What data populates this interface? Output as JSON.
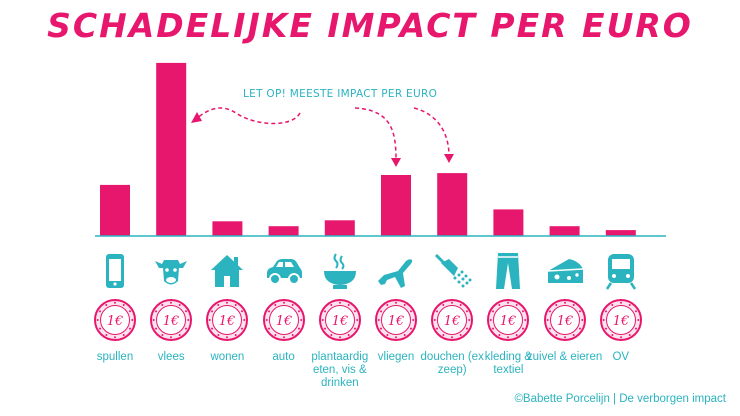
{
  "colors": {
    "bar": "#e8176e",
    "teal": "#2bb3bf",
    "coin": "#e8176e"
  },
  "chart_data": {
    "type": "bar",
    "title": "SCHADELIJKE IMPACT PER EURO",
    "categories": [
      {
        "label": "spullen",
        "icon": "smartphone-icon"
      },
      {
        "label": "vlees",
        "icon": "cow-icon"
      },
      {
        "label": "wonen",
        "icon": "house-icon"
      },
      {
        "label": "auto",
        "icon": "car-icon"
      },
      {
        "label": "plantaardig eten, vis & drinken",
        "icon": "steaming-bowl-icon"
      },
      {
        "label": "vliegen",
        "icon": "airplane-icon"
      },
      {
        "label": "douchen (ex zeep)",
        "icon": "shower-icon"
      },
      {
        "label": "kleding & textiel",
        "icon": "trousers-icon"
      },
      {
        "label": "zuivel & eieren",
        "icon": "cheese-icon"
      },
      {
        "label": "OV",
        "icon": "train-icon"
      }
    ],
    "values": [
      52,
      176,
      15,
      10,
      16,
      62,
      64,
      27,
      10,
      6
    ],
    "ylim": [
      0,
      180
    ],
    "annotation": "LET OP! MEESTE IMPACT PER EURO",
    "coin_symbol": "1€"
  },
  "credit": "©Babette Porcelijn | De verborgen impact"
}
